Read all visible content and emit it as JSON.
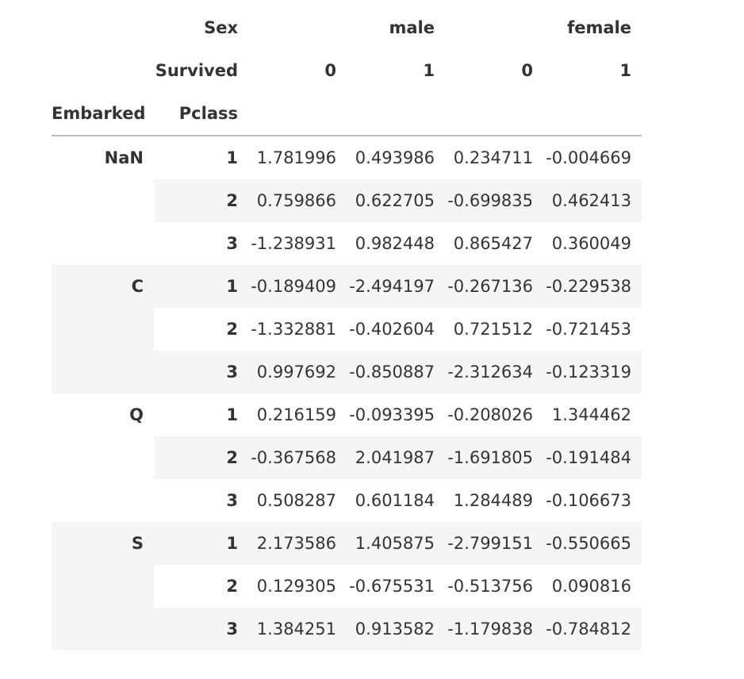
{
  "table": {
    "column_headers": {
      "sex_label": "Sex",
      "sex_values": [
        "male",
        "female"
      ],
      "survived_label": "Survived",
      "survived_values": [
        "0",
        "1",
        "0",
        "1"
      ],
      "index_names": [
        "Embarked",
        "Pclass"
      ]
    },
    "groups": [
      {
        "embarked": "NaN",
        "rows": [
          {
            "pclass": "1",
            "values": [
              "1.781996",
              "0.493986",
              "0.234711",
              "-0.004669"
            ]
          },
          {
            "pclass": "2",
            "values": [
              "0.759866",
              "0.622705",
              "-0.699835",
              "0.462413"
            ]
          },
          {
            "pclass": "3",
            "values": [
              "-1.238931",
              "0.982448",
              "0.865427",
              "0.360049"
            ]
          }
        ]
      },
      {
        "embarked": "C",
        "rows": [
          {
            "pclass": "1",
            "values": [
              "-0.189409",
              "-2.494197",
              "-0.267136",
              "-0.229538"
            ]
          },
          {
            "pclass": "2",
            "values": [
              "-1.332881",
              "-0.402604",
              "0.721512",
              "-0.721453"
            ]
          },
          {
            "pclass": "3",
            "values": [
              "0.997692",
              "-0.850887",
              "-2.312634",
              "-0.123319"
            ]
          }
        ]
      },
      {
        "embarked": "Q",
        "rows": [
          {
            "pclass": "1",
            "values": [
              "0.216159",
              "-0.093395",
              "-0.208026",
              "1.344462"
            ]
          },
          {
            "pclass": "2",
            "values": [
              "-0.367568",
              "2.041987",
              "-1.691805",
              "-0.191484"
            ]
          },
          {
            "pclass": "3",
            "values": [
              "0.508287",
              "0.601184",
              "1.284489",
              "-0.106673"
            ]
          }
        ]
      },
      {
        "embarked": "S",
        "rows": [
          {
            "pclass": "1",
            "values": [
              "2.173586",
              "1.405875",
              "-2.799151",
              "-0.550665"
            ]
          },
          {
            "pclass": "2",
            "values": [
              "0.129305",
              "-0.675531",
              "-0.513756",
              "0.090816"
            ]
          },
          {
            "pclass": "3",
            "values": [
              "1.384251",
              "0.913582",
              "-1.179838",
              "-0.784812"
            ]
          }
        ]
      }
    ]
  }
}
